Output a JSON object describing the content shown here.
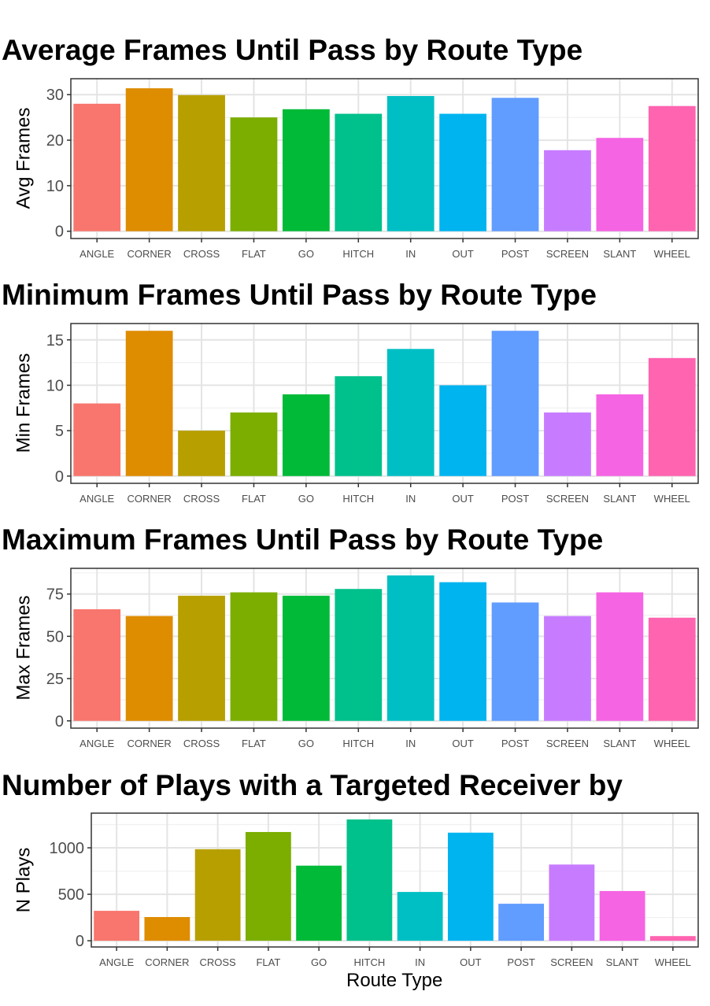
{
  "chart_data": [
    {
      "type": "bar",
      "title": "Average Frames Until Pass by Route Type",
      "xlabel": "",
      "ylabel": "Avg Frames",
      "ylim": [
        -1.6,
        33.5
      ],
      "yticks": [
        0,
        10,
        20,
        30
      ],
      "categories": [
        "ANGLE",
        "CORNER",
        "CROSS",
        "FLAT",
        "GO",
        "HITCH",
        "IN",
        "OUT",
        "POST",
        "SCREEN",
        "SLANT",
        "WHEEL"
      ],
      "values": [
        28.0,
        31.4,
        29.9,
        25.0,
        26.8,
        25.8,
        29.7,
        25.8,
        29.3,
        17.8,
        20.5,
        27.5
      ],
      "grid": true,
      "legend": "none"
    },
    {
      "type": "bar",
      "title": "Minimum Frames Until Pass by Route Type",
      "xlabel": "",
      "ylabel": "Min Frames",
      "ylim": [
        -0.8,
        16.8
      ],
      "yticks": [
        0,
        5,
        10,
        15
      ],
      "categories": [
        "ANGLE",
        "CORNER",
        "CROSS",
        "FLAT",
        "GO",
        "HITCH",
        "IN",
        "OUT",
        "POST",
        "SCREEN",
        "SLANT",
        "WHEEL"
      ],
      "values": [
        8,
        16,
        5,
        7,
        9,
        11,
        14,
        10,
        16,
        7,
        9,
        13
      ],
      "grid": true,
      "legend": "none"
    },
    {
      "type": "bar",
      "title": "Maximum Frames Until Pass by Route Type",
      "xlabel": "",
      "ylabel": "Max Frames",
      "ylim": [
        -4.3,
        90.2
      ],
      "yticks": [
        0,
        25,
        50,
        75
      ],
      "categories": [
        "ANGLE",
        "CORNER",
        "CROSS",
        "FLAT",
        "GO",
        "HITCH",
        "IN",
        "OUT",
        "POST",
        "SCREEN",
        "SLANT",
        "WHEEL"
      ],
      "values": [
        66,
        62,
        74,
        76,
        74,
        78,
        86,
        82,
        70,
        62,
        76,
        61
      ],
      "grid": true,
      "legend": "none"
    },
    {
      "type": "bar",
      "title": "Number of Plays with a Targeted Receiver by",
      "xlabel": "Route Type",
      "ylabel": "N Plays",
      "ylim": [
        -67,
        1373
      ],
      "yticks": [
        0,
        500,
        1000
      ],
      "categories": [
        "ANGLE",
        "CORNER",
        "CROSS",
        "FLAT",
        "GO",
        "HITCH",
        "IN",
        "OUT",
        "POST",
        "SCREEN",
        "SLANT",
        "WHEEL"
      ],
      "values": [
        322,
        255,
        985,
        1170,
        808,
        1305,
        525,
        1163,
        398,
        820,
        535,
        50
      ],
      "grid": true,
      "legend": "none"
    }
  ],
  "colors": [
    "#F8766D",
    "#DE8C00",
    "#B79F00",
    "#7CAE00",
    "#00BA38",
    "#00C08B",
    "#00BFC4",
    "#00B4F0",
    "#619CFF",
    "#C77CFF",
    "#F564E3",
    "#FF64B0"
  ]
}
